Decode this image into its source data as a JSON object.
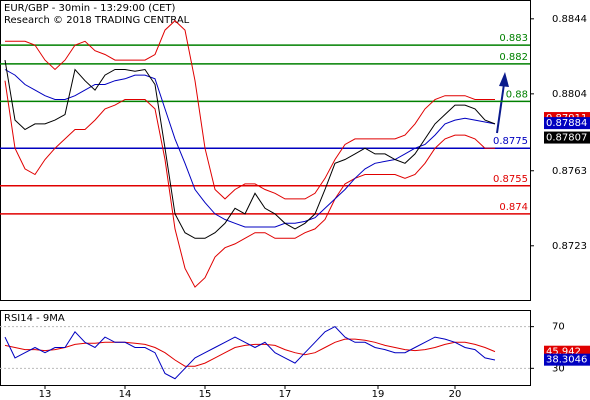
{
  "chart_data": [
    {
      "type": "line",
      "title": "EUR/GBP - 30min - 13:29:00 (CET)",
      "subtitle": "Research © 2018 TRADING CENTRAL",
      "xlim": [
        -0.5,
        52.5
      ],
      "ylim": [
        0.86941,
        0.88535
      ],
      "yticks": [
        0.8723,
        0.8763,
        0.8804,
        0.8844
      ],
      "levels": [
        {
          "value": 0.883,
          "color": "#008000"
        },
        {
          "value": 0.882,
          "color": "#008000"
        },
        {
          "value": 0.88,
          "color": "#008000"
        },
        {
          "value": 0.8775,
          "color": "#0000c0"
        },
        {
          "value": 0.8755,
          "color": "#e00000"
        },
        {
          "value": 0.874,
          "color": "#e00000"
        }
      ],
      "price_tags": [
        {
          "value": 0.87911,
          "color": "#e00000"
        },
        {
          "value": 0.87884,
          "color": "#0000c0"
        },
        {
          "value": 0.87807,
          "color": "#000000"
        }
      ],
      "series": [
        {
          "color": "#e00000",
          "values": [
            0.8832,
            0.8832,
            0.8832,
            0.883,
            0.8822,
            0.8817,
            0.8822,
            0.883,
            0.8832,
            0.8827,
            0.8825,
            0.8822,
            0.8822,
            0.8822,
            0.8822,
            0.8825,
            0.8838,
            0.8843,
            0.8838,
            0.8811,
            0.8775,
            0.8753,
            0.8748,
            0.8753,
            0.8756,
            0.8756,
            0.8753,
            0.8751,
            0.8748,
            0.8748,
            0.8748,
            0.8751,
            0.8759,
            0.8769,
            0.8777,
            0.878,
            0.878,
            0.878,
            0.878,
            0.878,
            0.8782,
            0.8788,
            0.8796,
            0.8801,
            0.8803,
            0.8803,
            0.8803,
            0.8801,
            0.8801,
            0.8801
          ]
        },
        {
          "color": "#e00000",
          "values": [
            0.8811,
            0.8775,
            0.8764,
            0.8761,
            0.8769,
            0.8775,
            0.878,
            0.8785,
            0.8785,
            0.879,
            0.8796,
            0.8798,
            0.8801,
            0.8801,
            0.8801,
            0.8796,
            0.8769,
            0.8732,
            0.8711,
            0.8701,
            0.8706,
            0.8717,
            0.8722,
            0.8724,
            0.8727,
            0.873,
            0.873,
            0.8727,
            0.8727,
            0.8727,
            0.873,
            0.8732,
            0.8737,
            0.8748,
            0.8756,
            0.8759,
            0.8761,
            0.8761,
            0.8761,
            0.8761,
            0.8759,
            0.8761,
            0.8767,
            0.8775,
            0.878,
            0.8782,
            0.8782,
            0.878,
            0.8775,
            0.8775
          ]
        },
        {
          "color": "#0000c0",
          "values": [
            0.8817,
            0.8814,
            0.8809,
            0.8806,
            0.8803,
            0.8801,
            0.8801,
            0.8803,
            0.8806,
            0.8809,
            0.8809,
            0.8811,
            0.8812,
            0.8814,
            0.8814,
            0.8812,
            0.8796,
            0.878,
            0.8767,
            0.8753,
            0.8746,
            0.874,
            0.8737,
            0.8735,
            0.8733,
            0.8733,
            0.8733,
            0.8733,
            0.8735,
            0.8735,
            0.8736,
            0.8738,
            0.8743,
            0.8748,
            0.8753,
            0.8759,
            0.8764,
            0.8767,
            0.8768,
            0.8769,
            0.8772,
            0.8775,
            0.8777,
            0.8782,
            0.8788,
            0.879,
            0.8791,
            0.879,
            0.8789,
            0.8788
          ]
        },
        {
          "color": "#000000",
          "values": [
            0.8822,
            0.879,
            0.8785,
            0.8788,
            0.8788,
            0.879,
            0.8793,
            0.8817,
            0.8811,
            0.8806,
            0.8814,
            0.8817,
            0.8817,
            0.8816,
            0.8817,
            0.8809,
            0.8775,
            0.874,
            0.873,
            0.8727,
            0.8727,
            0.873,
            0.8735,
            0.8743,
            0.874,
            0.8751,
            0.8743,
            0.874,
            0.8735,
            0.8732,
            0.8735,
            0.874,
            0.8753,
            0.8767,
            0.8769,
            0.8772,
            0.8775,
            0.8772,
            0.8772,
            0.8769,
            0.8767,
            0.8772,
            0.878,
            0.8788,
            0.8793,
            0.8798,
            0.8798,
            0.8796,
            0.879,
            0.8788
          ]
        }
      ]
    },
    {
      "type": "line",
      "title": "RSI14 - 9MA",
      "xlim": [
        -0.5,
        52.5
      ],
      "ylim": [
        14,
        85
      ],
      "yticks": [
        30,
        70
      ],
      "xticks": [
        {
          "value": 4,
          "label": "13"
        },
        {
          "value": 12,
          "label": "14"
        },
        {
          "value": 20,
          "label": "15"
        },
        {
          "value": 28,
          "label": "17"
        },
        {
          "value": 37.3,
          "label": "19"
        },
        {
          "value": 45,
          "label": "20"
        }
      ],
      "price_tags": [
        {
          "value": 45.942,
          "color": "#e00000"
        },
        {
          "value": 38.3046,
          "color": "#0000c0"
        }
      ],
      "series": [
        {
          "color": "#e00000",
          "values": [
            52,
            50,
            48,
            48,
            47,
            48,
            50,
            53,
            54,
            54,
            55,
            55,
            55,
            54,
            53,
            50,
            45,
            38,
            32,
            32,
            35,
            40,
            45,
            50,
            52,
            53,
            53,
            52,
            48,
            45,
            43,
            45,
            50,
            55,
            58,
            58,
            57,
            55,
            52,
            50,
            48,
            47,
            48,
            50,
            53,
            55,
            55,
            53,
            50,
            46
          ]
        },
        {
          "color": "#0000c0",
          "values": [
            60,
            40,
            45,
            50,
            45,
            50,
            50,
            65,
            55,
            50,
            60,
            55,
            55,
            50,
            50,
            45,
            25,
            20,
            30,
            40,
            45,
            50,
            55,
            60,
            55,
            50,
            55,
            45,
            40,
            35,
            45,
            55,
            65,
            70,
            60,
            55,
            55,
            50,
            48,
            45,
            45,
            50,
            55,
            60,
            58,
            55,
            50,
            48,
            40,
            38
          ]
        }
      ]
    }
  ]
}
